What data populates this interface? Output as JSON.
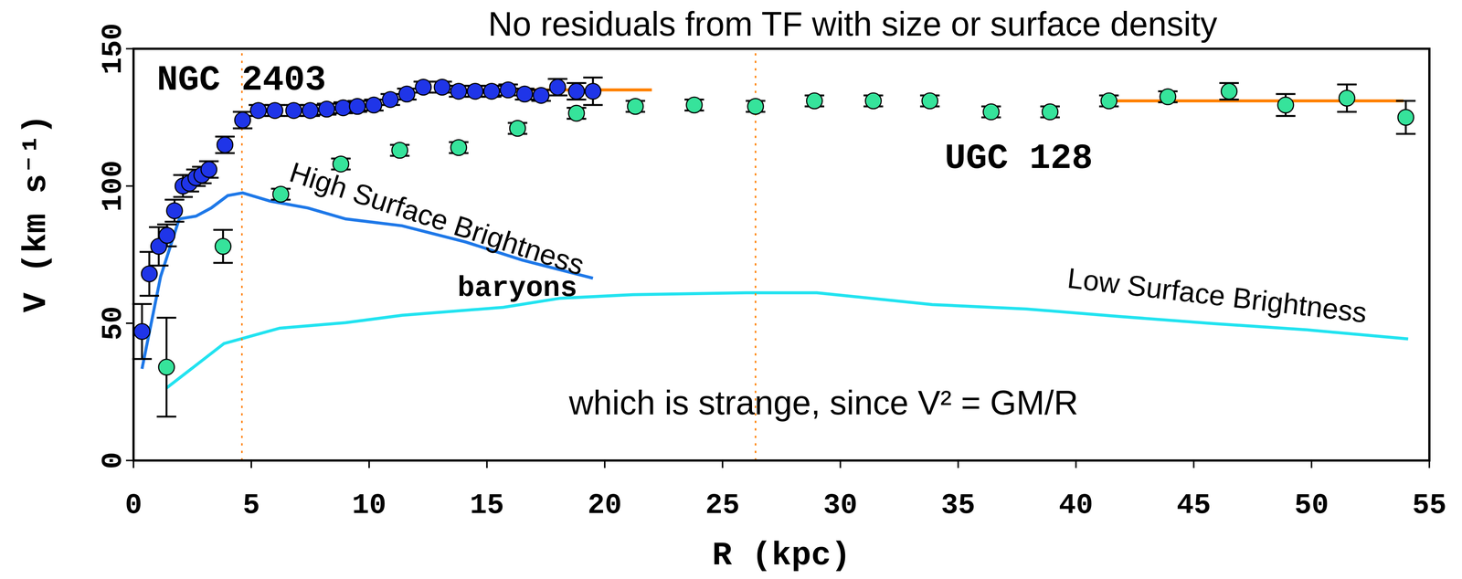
{
  "chart_data": {
    "type": "scatter",
    "title": "No residuals from TF with size or surface density",
    "x_label": "R (kpc)",
    "y_label": "V (km s⁻¹)",
    "xlim": [
      0,
      55
    ],
    "xticks": [
      0,
      5,
      10,
      15,
      20,
      25,
      30,
      35,
      40,
      45,
      50,
      55
    ],
    "ylim": [
      0,
      150
    ],
    "yticks": [
      0,
      50,
      100,
      150
    ],
    "grid": false,
    "series": [
      {
        "name": "NGC 2403",
        "type": "scatter",
        "color": "#1f35e8",
        "marker": "circle",
        "x": [
          0.36,
          0.67,
          1.07,
          1.42,
          1.74,
          2.1,
          2.37,
          2.65,
          2.9,
          3.2,
          3.88,
          4.63,
          5.3,
          6.0,
          6.8,
          7.5,
          8.2,
          8.9,
          9.5,
          10.2,
          10.9,
          11.6,
          12.3,
          13.1,
          13.8,
          14.5,
          15.2,
          15.9,
          16.6,
          17.3,
          18.0,
          18.8,
          19.5
        ],
        "values": [
          47,
          68,
          78,
          82,
          91,
          100,
          101,
          103,
          104,
          106,
          115,
          124,
          127.5,
          127.5,
          127.5,
          127.5,
          128,
          128.5,
          129,
          129.5,
          131.5,
          133.5,
          136,
          136,
          134.5,
          134.5,
          134.5,
          135,
          133.5,
          133,
          136,
          134.5,
          134.5
        ],
        "errors": [
          10,
          8,
          7,
          4,
          4,
          4,
          3,
          3,
          3,
          3,
          3,
          3,
          2,
          2,
          2,
          2,
          2,
          2,
          2,
          2,
          2,
          2,
          2,
          2,
          2,
          2,
          2,
          2,
          2,
          2,
          3,
          3,
          5
        ]
      },
      {
        "name": "UGC 128",
        "type": "scatter",
        "color": "#36e39b",
        "marker": "circle",
        "x": [
          1.4,
          3.8,
          6.25,
          8.8,
          11.3,
          13.8,
          16.3,
          18.8,
          21.3,
          23.8,
          26.4,
          28.9,
          31.4,
          33.8,
          36.4,
          38.9,
          41.4,
          43.9,
          46.5,
          48.9,
          51.5,
          54.0
        ],
        "values": [
          34,
          78,
          97,
          108,
          113,
          114,
          121,
          126.5,
          129,
          129.5,
          129,
          131,
          131,
          131,
          127,
          127,
          131,
          132.5,
          134.5,
          129.5,
          132,
          125
        ],
        "errors": [
          18,
          6,
          2,
          2,
          2,
          2,
          2,
          2,
          2,
          2,
          2,
          2,
          2,
          2,
          2,
          2,
          2,
          2,
          3,
          4,
          5,
          6
        ]
      },
      {
        "name": "High Surface Brightness",
        "type": "line",
        "color": "#1e78e8",
        "line_style": "solid",
        "x": [
          0.36,
          1.15,
          1.94,
          2.65,
          3.3,
          4.0,
          4.63,
          5.8,
          7.4,
          9.0,
          11.4,
          14.1,
          16.5,
          19.5
        ],
        "values": [
          33.4,
          67,
          88,
          89,
          92,
          96.5,
          97.5,
          94.5,
          92,
          88,
          85.5,
          79.6,
          73,
          66.4
        ]
      },
      {
        "name": "Low Surface Brightness",
        "type": "line",
        "color": "#22e3f0",
        "line_style": "solid",
        "x": [
          1.4,
          3.84,
          6.2,
          9.0,
          11.4,
          15.7,
          18.1,
          21.2,
          26.0,
          29.0,
          33.9,
          37.9,
          41.8,
          45.8,
          49.8,
          54.1
        ],
        "values": [
          26.4,
          42.6,
          48.2,
          50.2,
          52.9,
          55.8,
          59.1,
          60.4,
          61.1,
          61.1,
          56.8,
          55.2,
          52.5,
          49.9,
          47.6,
          44.3
        ]
      },
      {
        "type": "line",
        "color": "#ff8000",
        "line_style": "solid",
        "x": [
          14,
          22
        ],
        "values": [
          135,
          135
        ]
      },
      {
        "type": "line",
        "color": "#ff8000",
        "line_style": "solid",
        "x": [
          41.4,
          53.9
        ],
        "values": [
          131,
          131
        ]
      },
      {
        "type": "line",
        "color": "#ff8000",
        "line_style": "dotted",
        "x": [
          4.6,
          4.6
        ],
        "values": [
          0,
          150
        ]
      },
      {
        "type": "line",
        "color": "#ff8000",
        "line_style": "dotted",
        "x": [
          26.4,
          26.4
        ],
        "values": [
          0,
          150
        ]
      }
    ],
    "annotations": [
      "baryons",
      "which is strange, since V² = GM/R"
    ]
  }
}
